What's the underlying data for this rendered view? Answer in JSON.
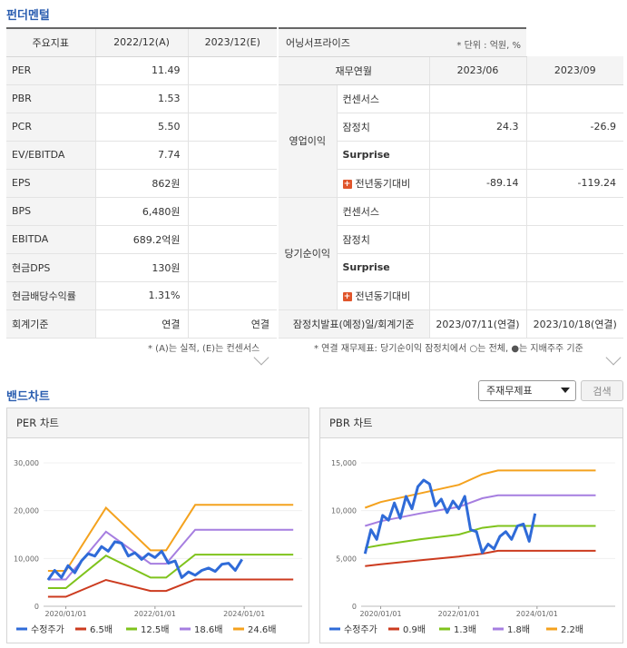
{
  "fundamentals": {
    "title": "펀더멘털",
    "left_table": {
      "headers": [
        "주요지표",
        "2022/12(A)",
        "2023/12(E)"
      ],
      "rows": [
        {
          "label": "PER",
          "v1": "11.49",
          "v2": ""
        },
        {
          "label": "PBR",
          "v1": "1.53",
          "v2": ""
        },
        {
          "label": "PCR",
          "v1": "5.50",
          "v2": ""
        },
        {
          "label": "EV/EBITDA",
          "v1": "7.74",
          "v2": ""
        },
        {
          "label": "EPS",
          "v1": "862원",
          "v2": ""
        },
        {
          "label": "BPS",
          "v1": "6,480원",
          "v2": ""
        },
        {
          "label": "EBITDA",
          "v1": "689.2억원",
          "v2": ""
        },
        {
          "label": "현금DPS",
          "v1": "130원",
          "v2": ""
        },
        {
          "label": "현금배당수익률",
          "v1": "1.31%",
          "v2": ""
        },
        {
          "label": "회계기준",
          "v1": "연결",
          "v2": "연결"
        }
      ],
      "note": "* (A)는 실적, (E)는 컨센서스"
    },
    "right_table": {
      "company": "어닝서프라이즈",
      "unit": "* 단위 : 억원, %",
      "headers": [
        "재무연월",
        "2023/06",
        "2023/09"
      ],
      "groups": [
        {
          "name": "영업이익",
          "rows": [
            {
              "label": "컨센서스",
              "v1": "",
              "v2": ""
            },
            {
              "label": "잠정치",
              "v1": "24.3",
              "v2": "-26.9"
            },
            {
              "label": "Surprise",
              "v1": "",
              "v2": ""
            },
            {
              "label": "전년동기대비",
              "v1": "-89.14",
              "v2": "-119.24"
            }
          ]
        },
        {
          "name": "당기순이익",
          "rows": [
            {
              "label": "컨센서스",
              "v1": "",
              "v2": ""
            },
            {
              "label": "잠정치",
              "v1": "",
              "v2": ""
            },
            {
              "label": "Surprise",
              "v1": "",
              "v2": ""
            },
            {
              "label": "전년동기대비",
              "v1": "",
              "v2": ""
            }
          ]
        }
      ],
      "footer": {
        "label": "잠정치발표(예정)일/회계기준",
        "v1": "2023/07/11(연결)",
        "v2": "2023/10/18(연결)"
      },
      "note": "* 연결 재무제표: 당기순이익 잠정치에서 ○는 전체, ●는 지배주주 기준"
    }
  },
  "band": {
    "title": "밴드차트",
    "select_value": "주재무제표",
    "search_label": "검색"
  },
  "chart_data": [
    {
      "type": "line",
      "title": "PER 차트",
      "x_ticks": [
        "2020/01/01",
        "2022/01/01",
        "2024/01/01"
      ],
      "y_ticks": [
        "0",
        "10,000",
        "20,000",
        "30,000"
      ],
      "ylim": [
        0,
        30000
      ],
      "x": [
        2019.6,
        2020.0,
        2020.9,
        2021.9,
        2022.25,
        2022.9,
        2024.4,
        2025.1
      ],
      "series": [
        {
          "name": "6.5배",
          "color": "#cc3b1f",
          "values": [
            2000,
            2000,
            5500,
            3200,
            3200,
            5600,
            5600,
            5600
          ]
        },
        {
          "name": "12.5배",
          "color": "#7fc31c",
          "values": [
            3800,
            3800,
            10600,
            6000,
            6000,
            10800,
            10800,
            10800
          ]
        },
        {
          "name": "18.6배",
          "color": "#a67ee0",
          "values": [
            5600,
            5600,
            15600,
            8900,
            8900,
            16000,
            16000,
            16000
          ]
        },
        {
          "name": "24.6배",
          "color": "#f4a21e",
          "values": [
            7400,
            7400,
            20600,
            11700,
            11700,
            21200,
            21200,
            21200
          ]
        }
      ],
      "price": {
        "name": "수정주가",
        "color": "#2f6bd8",
        "x": [
          2019.6,
          2019.75,
          2019.9,
          2020.05,
          2020.2,
          2020.35,
          2020.5,
          2020.65,
          2020.8,
          2020.95,
          2021.1,
          2021.25,
          2021.4,
          2021.55,
          2021.7,
          2021.85,
          2022.0,
          2022.15,
          2022.3,
          2022.45,
          2022.6,
          2022.75,
          2022.9,
          2023.05,
          2023.2,
          2023.35,
          2023.5,
          2023.65,
          2023.8,
          2023.95
        ],
        "values": [
          5500,
          7500,
          6000,
          8500,
          7000,
          9500,
          11000,
          10500,
          12500,
          11500,
          13500,
          13200,
          10500,
          11200,
          9800,
          11000,
          10200,
          11500,
          9000,
          9500,
          6000,
          7200,
          6500,
          7500,
          8000,
          7300,
          8800,
          9000,
          7500,
          9800
        ]
      }
    },
    {
      "type": "line",
      "title": "PBR 차트",
      "x_ticks": [
        "2020/01/01",
        "2022/01/01",
        "2024/01/01"
      ],
      "y_ticks": [
        "0",
        "5,000",
        "10,000",
        "15,000"
      ],
      "ylim": [
        0,
        15000
      ],
      "x": [
        2019.6,
        2020.0,
        2021.0,
        2022.0,
        2022.6,
        2023.0,
        2024.0,
        2025.5
      ],
      "series": [
        {
          "name": "0.9배",
          "color": "#cc3b1f",
          "values": [
            4200,
            4400,
            4800,
            5200,
            5500,
            5800,
            5800,
            5800
          ]
        },
        {
          "name": "1.3배",
          "color": "#7fc31c",
          "values": [
            6100,
            6400,
            7000,
            7500,
            8200,
            8400,
            8400,
            8400
          ]
        },
        {
          "name": "1.8배",
          "color": "#a67ee0",
          "values": [
            8400,
            8900,
            9700,
            10400,
            11300,
            11600,
            11600,
            11600
          ]
        },
        {
          "name": "2.2배",
          "color": "#f4a21e",
          "values": [
            10300,
            10900,
            11800,
            12700,
            13800,
            14200,
            14200,
            14200
          ]
        }
      ],
      "price": {
        "name": "수정주가",
        "color": "#2f6bd8",
        "x": [
          2019.6,
          2019.75,
          2019.9,
          2020.05,
          2020.2,
          2020.35,
          2020.5,
          2020.65,
          2020.8,
          2020.95,
          2021.1,
          2021.25,
          2021.4,
          2021.55,
          2021.7,
          2021.85,
          2022.0,
          2022.15,
          2022.3,
          2022.45,
          2022.6,
          2022.75,
          2022.9,
          2023.05,
          2023.2,
          2023.35,
          2023.5,
          2023.65,
          2023.8,
          2023.95
        ],
        "values": [
          5500,
          8000,
          7000,
          9500,
          9000,
          10800,
          9200,
          11500,
          10200,
          12500,
          13200,
          12800,
          10500,
          11200,
          9800,
          11000,
          10200,
          11500,
          8000,
          7800,
          5600,
          6500,
          6000,
          7300,
          7800,
          7000,
          8400,
          8600,
          6800,
          9700
        ]
      }
    }
  ]
}
